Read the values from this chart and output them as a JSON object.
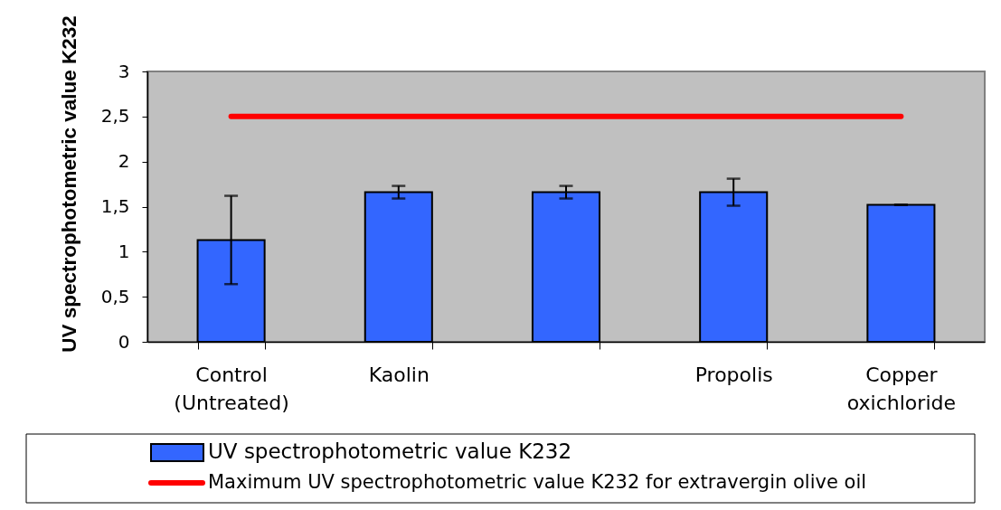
{
  "chart_data": {
    "type": "bar",
    "ylabel": "UV spectrophotometric value K232",
    "categories": [
      "Control (Untreated)",
      "Kaolin",
      null,
      "Propolis",
      "Copper oxichloride"
    ],
    "series": [
      {
        "name": "UV spectrophotometric value K232",
        "color": "#3366ff",
        "values": [
          1.13,
          1.66,
          1.66,
          1.66,
          1.52
        ],
        "errors": [
          0.49,
          0.07,
          0.07,
          0.15,
          0
        ]
      },
      {
        "name": "Maximum UV spectrophotometric value K232 for extravergin olive oil",
        "type": "line",
        "color": "#ff0000",
        "values": [
          2.5,
          2.5,
          2.5,
          2.5,
          2.5
        ]
      }
    ],
    "ylim": [
      0,
      3
    ],
    "yticks": [
      0,
      {
        "value": 0.5,
        "label": "0,5"
      },
      1,
      {
        "value": 1.5,
        "label": "1,5"
      },
      2,
      {
        "value": 2.5,
        "label": "2,5"
      },
      3
    ],
    "legend": "bottom"
  }
}
